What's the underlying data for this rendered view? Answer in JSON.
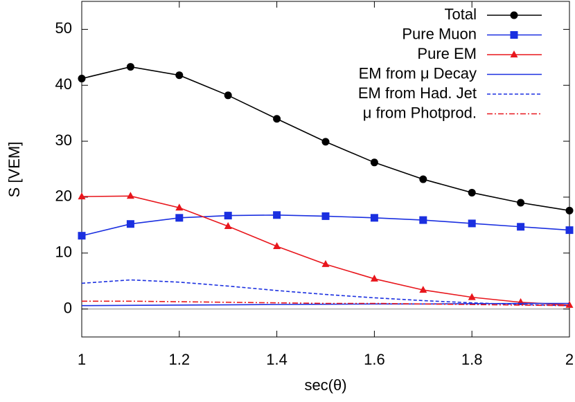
{
  "chart_data": {
    "type": "line",
    "x_label": "sec(θ)",
    "y_label": "S [VEM]",
    "x": [
      1,
      1.1,
      1.2,
      1.3,
      1.4,
      1.5,
      1.6,
      1.7,
      1.8,
      1.9,
      2
    ],
    "xlim": [
      1,
      2
    ],
    "xticks": [
      1,
      1.2,
      1.4,
      1.6,
      1.8,
      2
    ],
    "ylim": [
      -5,
      55
    ],
    "yticks": [
      0,
      10,
      20,
      30,
      40,
      50
    ],
    "zero_line": true,
    "legend": "top-right",
    "series": [
      {
        "name": "Total",
        "color": "#000000",
        "marker": "circle",
        "dash": "solid",
        "values": [
          41.2,
          43.3,
          41.8,
          38.2,
          34.0,
          29.9,
          26.2,
          23.2,
          20.8,
          19.0,
          17.6
        ]
      },
      {
        "name": "Pure Muon",
        "color": "#1a2fe0",
        "marker": "square",
        "dash": "solid",
        "values": [
          13.1,
          15.2,
          16.3,
          16.7,
          16.8,
          16.6,
          16.3,
          15.9,
          15.3,
          14.7,
          14.1
        ]
      },
      {
        "name": "Pure EM",
        "color": "#e8161c",
        "marker": "triangle",
        "dash": "solid",
        "values": [
          20.1,
          20.2,
          18.1,
          14.8,
          11.2,
          8.0,
          5.4,
          3.4,
          2.1,
          1.2,
          0.7
        ]
      },
      {
        "name": "EM from μ Decay",
        "color": "#1a2fe0",
        "marker": "none",
        "dash": "solid",
        "values": [
          0.6,
          0.65,
          0.7,
          0.75,
          0.8,
          0.85,
          0.9,
          0.9,
          0.95,
          1.0,
          1.0
        ]
      },
      {
        "name": "EM from Had. Jet",
        "color": "#1a2fe0",
        "marker": "none",
        "dash": "dashed",
        "values": [
          4.6,
          5.2,
          4.8,
          4.1,
          3.3,
          2.6,
          2.0,
          1.5,
          1.1,
          0.8,
          0.6
        ]
      },
      {
        "name": "μ from Photprod.",
        "color": "#e8161c",
        "marker": "none",
        "dash": "dashdot",
        "values": [
          1.4,
          1.4,
          1.3,
          1.2,
          1.1,
          1.0,
          1.0,
          0.9,
          0.8,
          0.7,
          0.6
        ]
      }
    ]
  }
}
